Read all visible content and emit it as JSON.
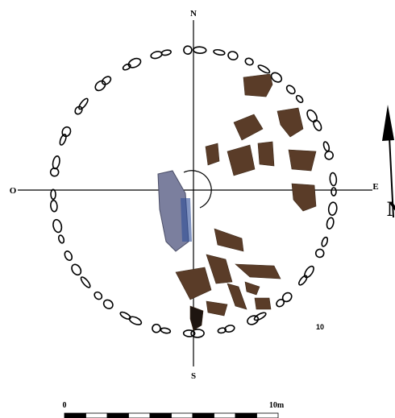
{
  "compass": {
    "north": "N",
    "south": "S",
    "west": "O",
    "east": "E"
  },
  "plot_number": "10",
  "scale_bar": {
    "start": "0",
    "end": "10m"
  },
  "north_arrow": "N"
}
